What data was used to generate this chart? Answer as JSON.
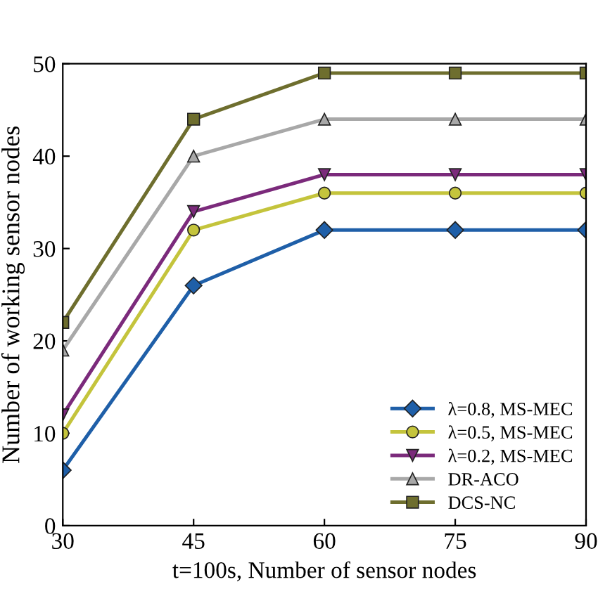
{
  "chart_data": {
    "type": "line",
    "xlabel": "t=100s, Number of sensor nodes",
    "ylabel": "Number of working sensor nodes",
    "x": [
      30,
      45,
      60,
      75,
      90
    ],
    "xlim": [
      30,
      90
    ],
    "xticks": [
      30,
      45,
      60,
      75,
      90
    ],
    "ylim": [
      0,
      50
    ],
    "yticks": [
      0,
      10,
      20,
      30,
      40,
      50
    ],
    "grid": false,
    "legend": "bottom right",
    "series": [
      {
        "name": "λ=0.8, MS-MEC",
        "color": "#1f5fa8",
        "marker": "diamond",
        "values": [
          6,
          26,
          32,
          32,
          32
        ]
      },
      {
        "name": "λ=0.5, MS-MEC",
        "color": "#c4c43c",
        "marker": "circle",
        "values": [
          10,
          32,
          36,
          36,
          36
        ]
      },
      {
        "name": "λ=0.2, MS-MEC",
        "color": "#7b2a7b",
        "marker": "triangle_down",
        "values": [
          12,
          34,
          38,
          38,
          38
        ]
      },
      {
        "name": "DR-ACO",
        "color": "#a8a8a8",
        "marker": "triangle",
        "values": [
          19,
          40,
          44,
          44,
          44
        ]
      },
      {
        "name": "DCS-NC",
        "color": "#6e6e2e",
        "marker": "square",
        "values": [
          22,
          44,
          49,
          49,
          49
        ]
      }
    ]
  }
}
